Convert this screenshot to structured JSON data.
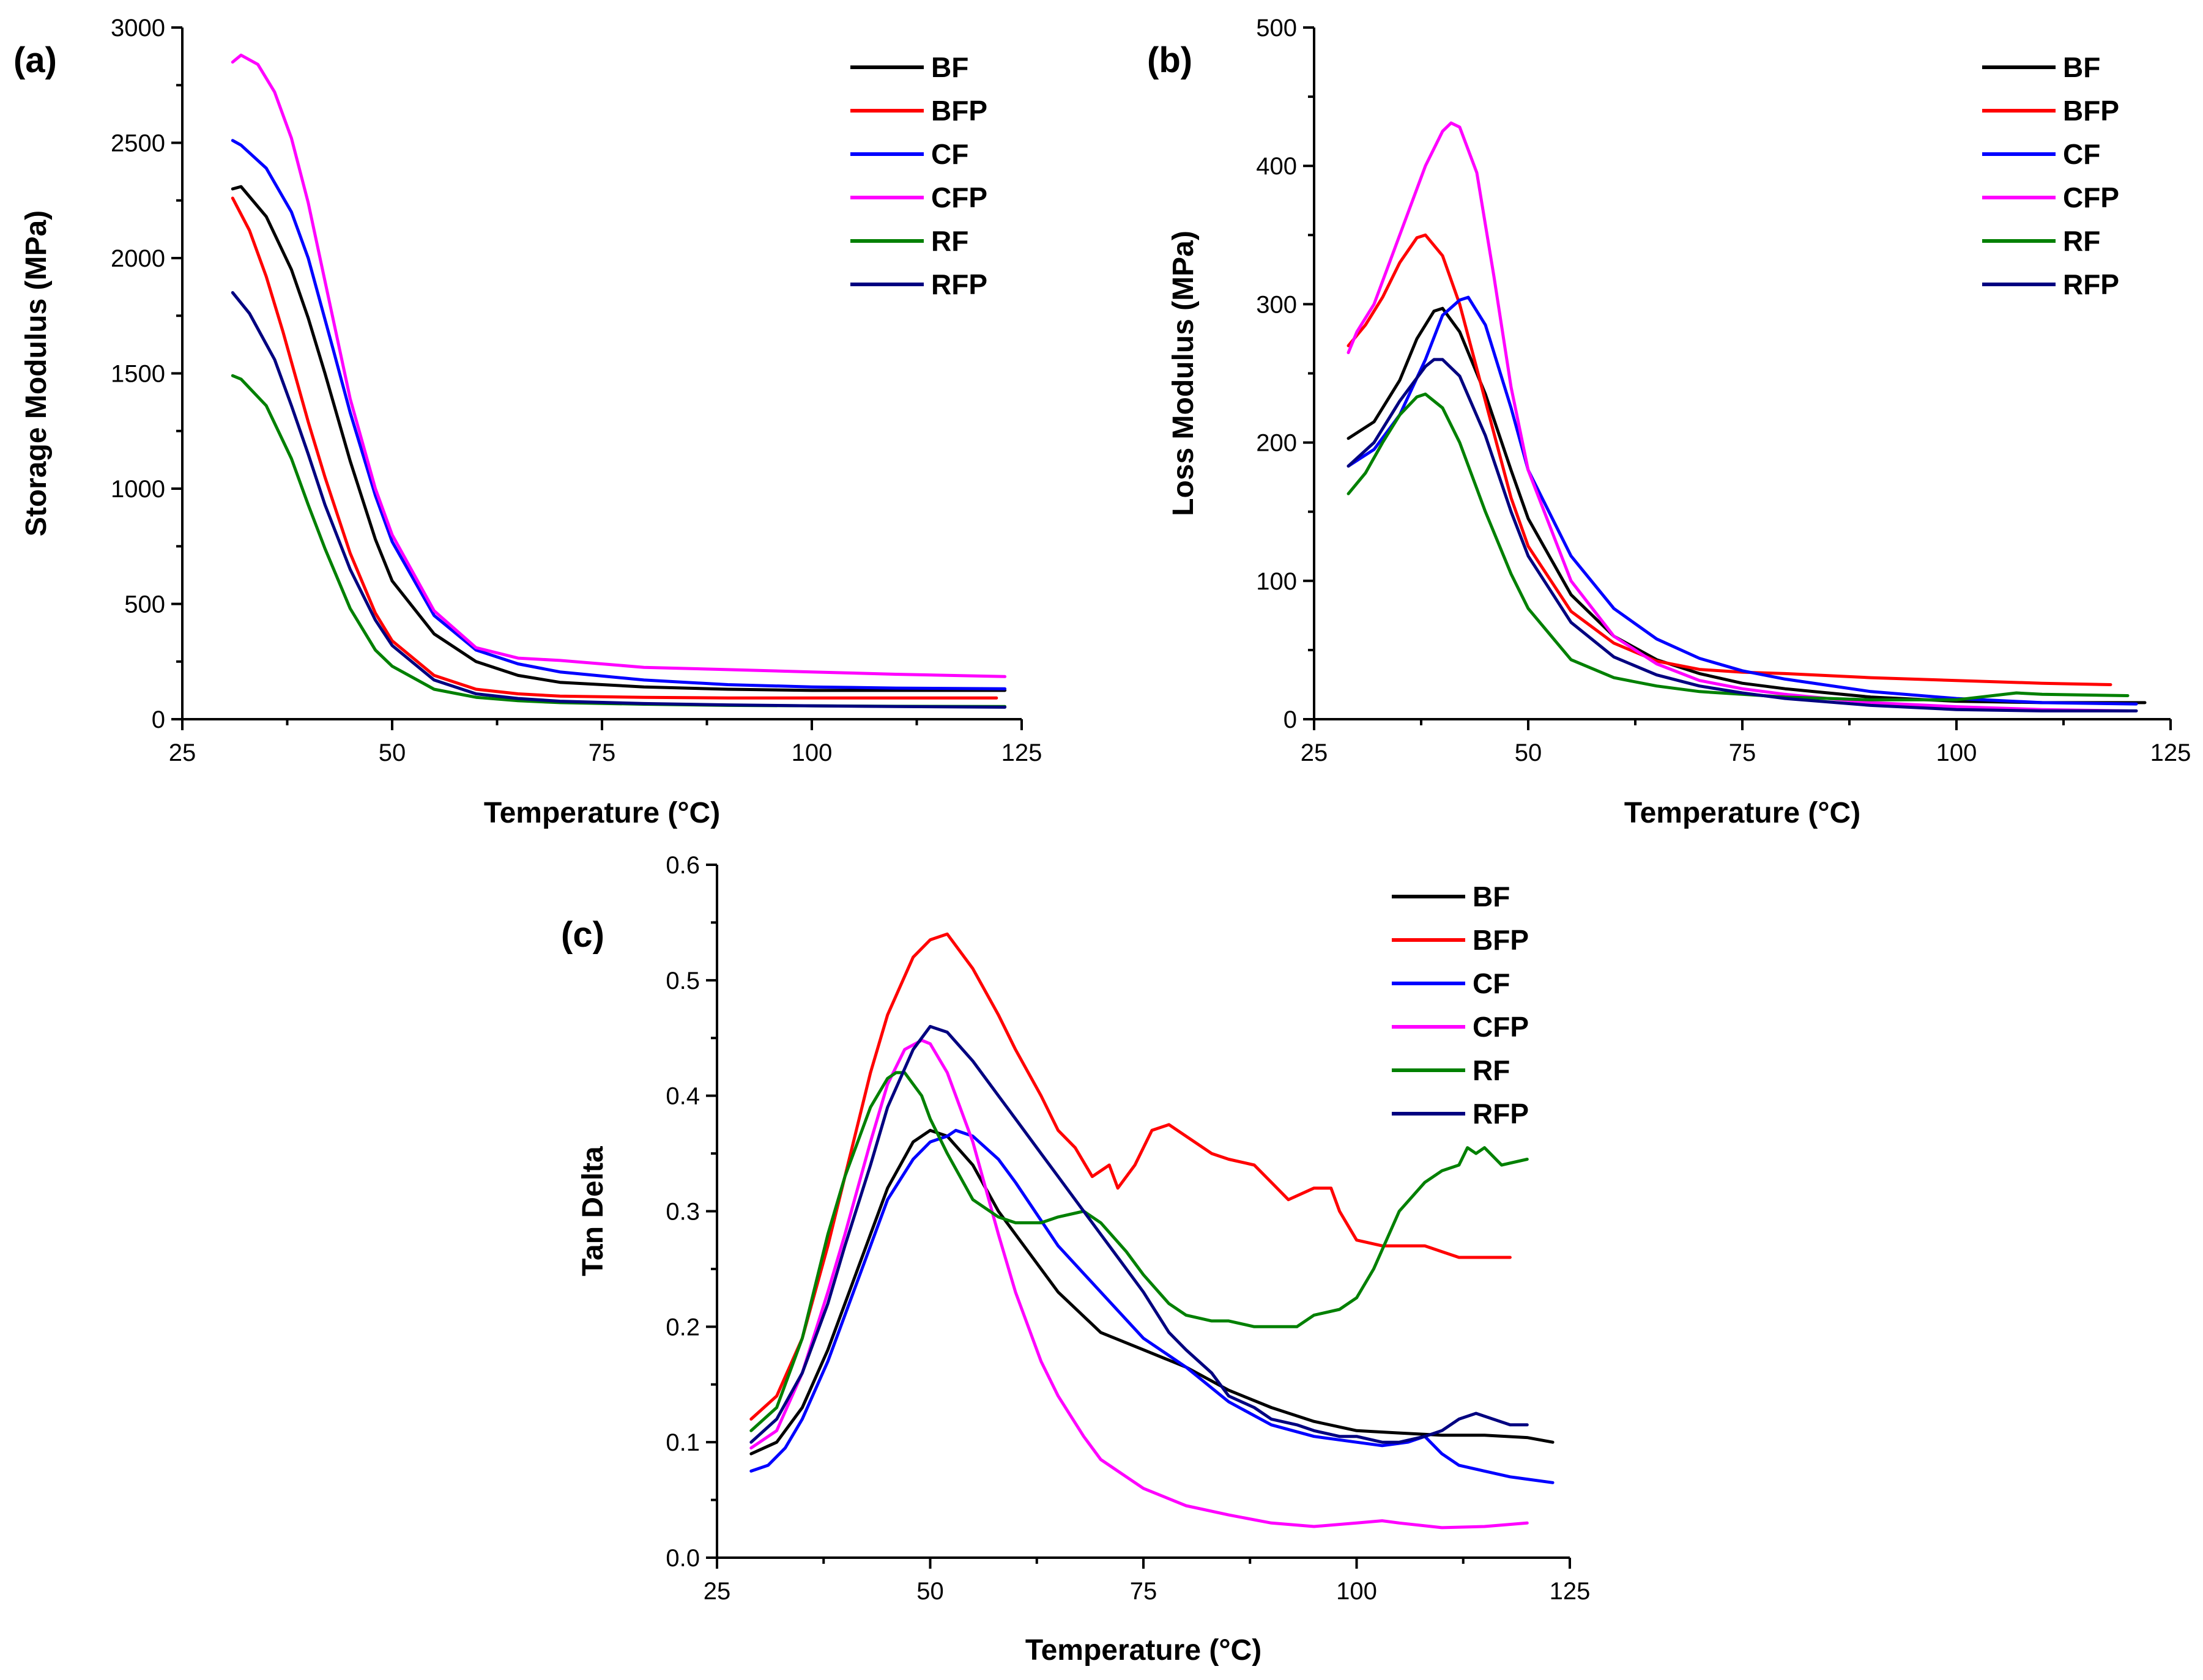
{
  "colors": {
    "BF": "#000000",
    "BFP": "#ff0000",
    "CF": "#0000ff",
    "CFP": "#ff00ff",
    "RF": "#008000",
    "RFP": "#000080"
  },
  "chart_data": [
    {
      "id": "a",
      "type": "line",
      "panel_label": "(a)",
      "title": "",
      "xlabel": "Temperature (°C)",
      "ylabel": "Storage Modulus (MPa)",
      "xlim": [
        25,
        125
      ],
      "ylim": [
        0,
        3000
      ],
      "xticks": [
        25,
        50,
        75,
        100,
        125
      ],
      "yticks": [
        0,
        500,
        1000,
        1500,
        2000,
        2500,
        3000
      ],
      "grid": false,
      "legend": "top-right",
      "series": [
        {
          "name": "BF",
          "x": [
            31,
            32,
            35,
            38,
            40,
            42,
            45,
            48,
            50,
            55,
            60,
            65,
            70,
            80,
            90,
            100,
            110,
            123
          ],
          "y": [
            2300,
            2310,
            2180,
            1950,
            1740,
            1500,
            1120,
            780,
            600,
            370,
            250,
            190,
            160,
            140,
            130,
            125,
            125,
            125
          ]
        },
        {
          "name": "BFP",
          "x": [
            31,
            33,
            35,
            37,
            40,
            42,
            45,
            48,
            50,
            55,
            60,
            65,
            70,
            80,
            90,
            100,
            110,
            122
          ],
          "y": [
            2260,
            2120,
            1920,
            1680,
            1290,
            1050,
            720,
            460,
            340,
            190,
            130,
            110,
            100,
            95,
            92,
            92,
            92,
            92
          ]
        },
        {
          "name": "CF",
          "x": [
            31,
            32,
            35,
            38,
            40,
            43,
            45,
            48,
            50,
            55,
            60,
            65,
            70,
            80,
            90,
            100,
            110,
            123
          ],
          "y": [
            2510,
            2490,
            2390,
            2200,
            2000,
            1600,
            1330,
            970,
            770,
            450,
            300,
            240,
            205,
            170,
            150,
            140,
            135,
            132
          ]
        },
        {
          "name": "CFP",
          "x": [
            31,
            32,
            34,
            36,
            38,
            40,
            42,
            45,
            48,
            50,
            55,
            60,
            65,
            70,
            80,
            90,
            100,
            110,
            123
          ],
          "y": [
            2850,
            2880,
            2840,
            2720,
            2520,
            2240,
            1900,
            1390,
            1000,
            800,
            470,
            310,
            265,
            255,
            225,
            215,
            205,
            195,
            185
          ]
        },
        {
          "name": "RF",
          "x": [
            31,
            32,
            35,
            38,
            40,
            42,
            45,
            48,
            50,
            55,
            60,
            65,
            70,
            80,
            90,
            100,
            110,
            123
          ],
          "y": [
            1490,
            1475,
            1360,
            1130,
            930,
            740,
            480,
            300,
            230,
            130,
            95,
            80,
            72,
            65,
            60,
            58,
            56,
            55
          ]
        },
        {
          "name": "RFP",
          "x": [
            31,
            33,
            36,
            38,
            40,
            42,
            45,
            48,
            50,
            55,
            60,
            65,
            70,
            80,
            90,
            100,
            110,
            123
          ],
          "y": [
            1850,
            1760,
            1560,
            1360,
            1150,
            930,
            650,
            430,
            320,
            170,
            110,
            90,
            78,
            68,
            62,
            58,
            55,
            52
          ]
        }
      ]
    },
    {
      "id": "b",
      "type": "line",
      "panel_label": "(b)",
      "title": "",
      "xlabel": "Temperature (°C)",
      "ylabel": "Loss Modulus (MPa)",
      "xlim": [
        25,
        125
      ],
      "ylim": [
        0,
        500
      ],
      "xticks": [
        25,
        50,
        75,
        100,
        125
      ],
      "yticks": [
        0,
        100,
        200,
        300,
        400,
        500
      ],
      "grid": false,
      "legend": "top-right",
      "series": [
        {
          "name": "BF",
          "x": [
            29,
            32,
            35,
            37,
            39,
            40,
            42,
            45,
            48,
            50,
            55,
            60,
            65,
            70,
            75,
            80,
            90,
            100,
            110,
            122
          ],
          "y": [
            203,
            215,
            245,
            275,
            295,
            297,
            280,
            235,
            180,
            145,
            90,
            60,
            43,
            33,
            26,
            22,
            16,
            13,
            12,
            12
          ]
        },
        {
          "name": "BFP",
          "x": [
            29,
            31,
            33,
            35,
            37,
            38,
            40,
            42,
            45,
            48,
            50,
            55,
            60,
            65,
            70,
            75,
            80,
            90,
            100,
            110,
            118
          ],
          "y": [
            270,
            285,
            305,
            330,
            348,
            350,
            335,
            300,
            230,
            160,
            125,
            78,
            55,
            42,
            36,
            34,
            33,
            30,
            28,
            26,
            25
          ]
        },
        {
          "name": "CF",
          "x": [
            29,
            32,
            35,
            38,
            40,
            42,
            43,
            45,
            48,
            50,
            55,
            60,
            65,
            70,
            75,
            80,
            90,
            100,
            110,
            121
          ],
          "y": [
            183,
            195,
            220,
            260,
            292,
            303,
            305,
            285,
            225,
            180,
            118,
            80,
            58,
            44,
            35,
            29,
            20,
            15,
            12,
            11
          ]
        },
        {
          "name": "CFP",
          "x": [
            29,
            30,
            32,
            35,
            38,
            40,
            41,
            42,
            44,
            46,
            48,
            50,
            55,
            60,
            65,
            70,
            75,
            80,
            90,
            100,
            110,
            120
          ],
          "y": [
            265,
            280,
            300,
            350,
            400,
            425,
            431,
            428,
            395,
            320,
            240,
            180,
            100,
            60,
            40,
            28,
            22,
            18,
            12,
            9,
            7,
            6
          ]
        },
        {
          "name": "RF",
          "x": [
            29,
            31,
            33,
            35,
            37,
            38,
            40,
            42,
            45,
            48,
            50,
            55,
            60,
            65,
            70,
            75,
            80,
            90,
            100,
            107,
            110,
            120
          ],
          "y": [
            163,
            178,
            200,
            220,
            233,
            235,
            225,
            200,
            150,
            105,
            80,
            43,
            30,
            24,
            20,
            18,
            16,
            14,
            14,
            19,
            18,
            17
          ]
        },
        {
          "name": "RFP",
          "x": [
            29,
            32,
            35,
            38,
            39,
            40,
            42,
            45,
            48,
            50,
            55,
            60,
            65,
            70,
            75,
            80,
            90,
            100,
            110,
            121
          ],
          "y": [
            183,
            200,
            230,
            255,
            260,
            260,
            248,
            205,
            150,
            118,
            70,
            45,
            32,
            24,
            19,
            15,
            10,
            7,
            6,
            6
          ]
        }
      ]
    },
    {
      "id": "c",
      "type": "line",
      "panel_label": "(c)",
      "title": "",
      "xlabel": "Temperature (°C)",
      "ylabel": "Tan Delta",
      "xlim": [
        25,
        125
      ],
      "ylim": [
        0.0,
        0.6
      ],
      "xticks": [
        25,
        50,
        75,
        100,
        125
      ],
      "yticks": [
        0.0,
        0.1,
        0.2,
        0.3,
        0.4,
        0.5,
        0.6
      ],
      "grid": false,
      "legend": "top-right",
      "series": [
        {
          "name": "BF",
          "x": [
            29,
            32,
            35,
            38,
            40,
            43,
            45,
            48,
            50,
            52,
            55,
            58,
            60,
            65,
            70,
            75,
            80,
            85,
            90,
            95,
            100,
            105,
            110,
            115,
            120,
            123
          ],
          "y": [
            0.09,
            0.1,
            0.13,
            0.18,
            0.22,
            0.28,
            0.32,
            0.36,
            0.37,
            0.365,
            0.34,
            0.3,
            0.28,
            0.23,
            0.195,
            0.18,
            0.165,
            0.145,
            0.13,
            0.118,
            0.11,
            0.108,
            0.106,
            0.106,
            0.104,
            0.1
          ]
        },
        {
          "name": "BFP",
          "x": [
            29,
            32,
            35,
            38,
            40,
            43,
            45,
            48,
            50,
            52,
            55,
            58,
            60,
            63,
            65,
            67,
            69,
            71,
            72,
            74,
            76,
            78,
            80,
            83,
            85,
            88,
            90,
            92,
            95,
            97,
            98,
            100,
            103,
            105,
            108,
            110,
            112,
            115,
            118
          ],
          "y": [
            0.12,
            0.14,
            0.19,
            0.27,
            0.33,
            0.42,
            0.47,
            0.52,
            0.535,
            0.54,
            0.51,
            0.47,
            0.44,
            0.4,
            0.37,
            0.355,
            0.33,
            0.34,
            0.32,
            0.34,
            0.37,
            0.375,
            0.365,
            0.35,
            0.345,
            0.34,
            0.325,
            0.31,
            0.32,
            0.32,
            0.3,
            0.275,
            0.27,
            0.27,
            0.27,
            0.265,
            0.26,
            0.26,
            0.26
          ]
        },
        {
          "name": "CF",
          "x": [
            29,
            31,
            33,
            35,
            38,
            40,
            43,
            45,
            48,
            50,
            52,
            53,
            55,
            58,
            60,
            65,
            70,
            75,
            80,
            85,
            90,
            95,
            100,
            103,
            106,
            108,
            110,
            112,
            115,
            118,
            120,
            123
          ],
          "y": [
            0.075,
            0.08,
            0.095,
            0.12,
            0.17,
            0.21,
            0.27,
            0.31,
            0.345,
            0.36,
            0.365,
            0.37,
            0.365,
            0.345,
            0.325,
            0.27,
            0.23,
            0.19,
            0.165,
            0.135,
            0.115,
            0.105,
            0.1,
            0.097,
            0.1,
            0.105,
            0.09,
            0.08,
            0.075,
            0.07,
            0.068,
            0.065
          ]
        },
        {
          "name": "CFP",
          "x": [
            29,
            32,
            35,
            38,
            40,
            43,
            45,
            47,
            49,
            50,
            52,
            55,
            58,
            60,
            63,
            65,
            68,
            70,
            75,
            80,
            85,
            90,
            95,
            100,
            103,
            105,
            110,
            115,
            120
          ],
          "y": [
            0.095,
            0.11,
            0.16,
            0.23,
            0.28,
            0.36,
            0.41,
            0.44,
            0.448,
            0.445,
            0.42,
            0.36,
            0.28,
            0.23,
            0.17,
            0.14,
            0.105,
            0.085,
            0.06,
            0.045,
            0.037,
            0.03,
            0.027,
            0.03,
            0.032,
            0.03,
            0.026,
            0.027,
            0.03
          ]
        },
        {
          "name": "RF",
          "x": [
            29,
            32,
            35,
            38,
            40,
            43,
            45,
            46,
            47,
            49,
            50,
            52,
            55,
            58,
            60,
            63,
            65,
            68,
            70,
            73,
            75,
            78,
            80,
            83,
            85,
            88,
            90,
            93,
            95,
            98,
            100,
            102,
            105,
            108,
            110,
            112,
            113,
            114,
            115,
            117,
            120
          ],
          "y": [
            0.11,
            0.13,
            0.19,
            0.28,
            0.33,
            0.39,
            0.415,
            0.42,
            0.42,
            0.4,
            0.38,
            0.35,
            0.31,
            0.295,
            0.29,
            0.29,
            0.295,
            0.3,
            0.29,
            0.265,
            0.245,
            0.22,
            0.21,
            0.205,
            0.205,
            0.2,
            0.2,
            0.2,
            0.21,
            0.215,
            0.225,
            0.25,
            0.3,
            0.325,
            0.335,
            0.34,
            0.355,
            0.35,
            0.355,
            0.34,
            0.345
          ]
        },
        {
          "name": "RFP",
          "x": [
            29,
            32,
            35,
            38,
            40,
            43,
            45,
            48,
            50,
            52,
            55,
            58,
            60,
            63,
            65,
            68,
            70,
            72,
            75,
            78,
            80,
            83,
            85,
            88,
            90,
            93,
            95,
            98,
            100,
            103,
            105,
            108,
            110,
            112,
            114,
            116,
            118,
            120
          ],
          "y": [
            0.1,
            0.12,
            0.16,
            0.22,
            0.27,
            0.34,
            0.39,
            0.44,
            0.46,
            0.455,
            0.43,
            0.4,
            0.38,
            0.35,
            0.33,
            0.3,
            0.28,
            0.26,
            0.23,
            0.195,
            0.18,
            0.16,
            0.14,
            0.13,
            0.12,
            0.115,
            0.11,
            0.105,
            0.105,
            0.1,
            0.1,
            0.105,
            0.11,
            0.12,
            0.125,
            0.12,
            0.115,
            0.115
          ]
        }
      ]
    }
  ]
}
